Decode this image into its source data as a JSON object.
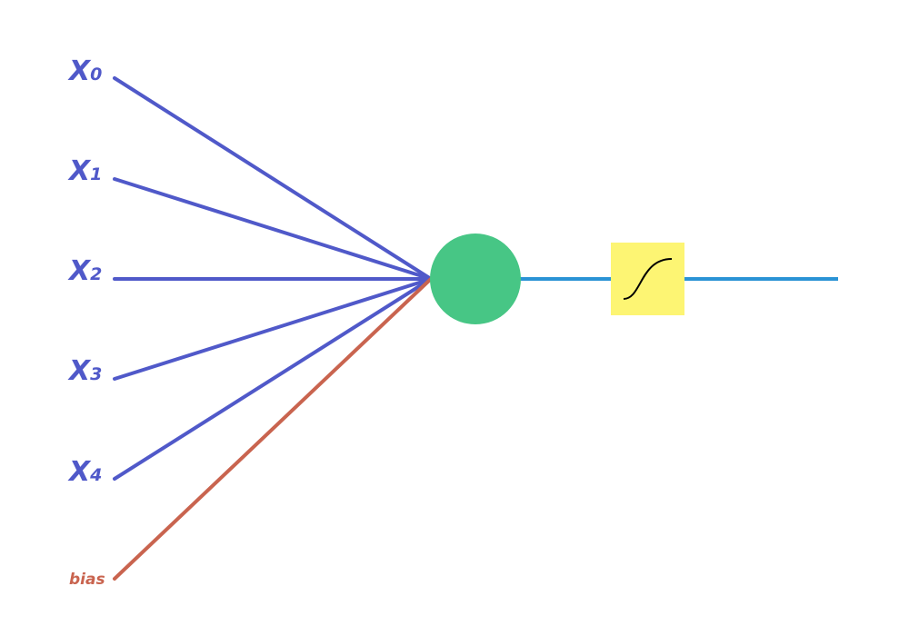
{
  "colors": {
    "input_line": "#5059c9",
    "bias_line": "#c9644f",
    "neuron": "#47c685",
    "output_line": "#2a93d5",
    "activation_box": "#fdf573",
    "activation_curve": "#000000"
  },
  "inputs": [
    {
      "main": "X",
      "sub": "0"
    },
    {
      "main": "X",
      "sub": "1"
    },
    {
      "main": "X",
      "sub": "2"
    },
    {
      "main": "X",
      "sub": "3"
    },
    {
      "main": "X",
      "sub": "4"
    }
  ],
  "bias": {
    "label": "bias"
  },
  "neuron": {
    "icon": "circle-node"
  },
  "activation": {
    "icon": "sigmoid-curve-icon"
  }
}
